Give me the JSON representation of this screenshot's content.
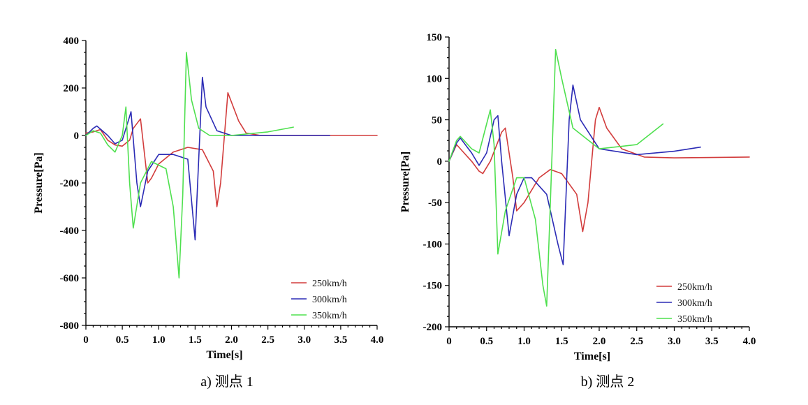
{
  "chart_data": [
    {
      "type": "line",
      "caption": "a)  测点 1",
      "xlabel": "Time[s]",
      "ylabel": "Pressure[Pa]",
      "xlim": [
        0,
        4.0
      ],
      "ylim": [
        -800,
        400
      ],
      "xticks": [
        "0",
        "0.5",
        "1.0",
        "1.5",
        "2.0",
        "2.5",
        "3.0",
        "3.5",
        "4.0"
      ],
      "yticks": [
        "400",
        "200",
        "0",
        "-200",
        "-400",
        "-600",
        "-800"
      ],
      "legend_position": "bottom-right",
      "series": [
        {
          "name": "250km/h",
          "color": "#d23c3c",
          "x": [
            0,
            0.1,
            0.2,
            0.3,
            0.4,
            0.5,
            0.6,
            0.65,
            0.75,
            0.85,
            0.9,
            1.0,
            1.2,
            1.4,
            1.6,
            1.75,
            1.8,
            1.85,
            1.95,
            2.1,
            2.2,
            2.4,
            3.0,
            4.0
          ],
          "y": [
            10,
            15,
            25,
            -20,
            -40,
            -45,
            -20,
            30,
            70,
            -200,
            -180,
            -120,
            -70,
            -50,
            -60,
            -150,
            -300,
            -200,
            180,
            60,
            10,
            0,
            0,
            0
          ]
        },
        {
          "name": "300km/h",
          "color": "#2b2bb5",
          "x": [
            0,
            0.1,
            0.15,
            0.3,
            0.4,
            0.5,
            0.6,
            0.62,
            0.7,
            0.75,
            0.85,
            1.0,
            1.2,
            1.4,
            1.5,
            1.52,
            1.6,
            1.65,
            1.8,
            2.0,
            2.5,
            3.0,
            3.35
          ],
          "y": [
            0,
            30,
            40,
            0,
            -35,
            -20,
            80,
            100,
            -200,
            -300,
            -150,
            -80,
            -80,
            -100,
            -440,
            -300,
            245,
            120,
            20,
            0,
            0,
            0,
            0
          ]
        },
        {
          "name": "350km/h",
          "color": "#4fe04f",
          "x": [
            0,
            0.1,
            0.2,
            0.3,
            0.4,
            0.5,
            0.55,
            0.6,
            0.65,
            0.75,
            0.9,
            1.1,
            1.2,
            1.28,
            1.33,
            1.38,
            1.45,
            1.55,
            1.7,
            2.0,
            2.5,
            2.85
          ],
          "y": [
            0,
            20,
            10,
            -40,
            -70,
            0,
            120,
            -200,
            -390,
            -200,
            -110,
            -140,
            -300,
            -600,
            -250,
            350,
            150,
            30,
            0,
            0,
            15,
            35
          ]
        }
      ]
    },
    {
      "type": "line",
      "caption": "b)  测点 2",
      "xlabel": "Time[s]",
      "ylabel": "Pressure[Pa]",
      "xlim": [
        0,
        4.0
      ],
      "ylim": [
        -200,
        150
      ],
      "xticks": [
        "0",
        "0.5",
        "1.0",
        "1.5",
        "2.0",
        "2.5",
        "3.0",
        "3.5",
        "4.0"
      ],
      "yticks": [
        "150",
        "100",
        "50",
        "0",
        "-50",
        "-100",
        "-150",
        "-200"
      ],
      "legend_position": "bottom-right",
      "series": [
        {
          "name": "250km/h",
          "color": "#d23c3c",
          "x": [
            0,
            0.1,
            0.2,
            0.3,
            0.4,
            0.45,
            0.55,
            0.7,
            0.75,
            0.85,
            0.9,
            1.0,
            1.2,
            1.35,
            1.5,
            1.7,
            1.78,
            1.85,
            1.95,
            2.0,
            2.1,
            2.3,
            2.6,
            3.0,
            4.0
          ],
          "y": [
            0,
            20,
            10,
            0,
            -12,
            -15,
            0,
            35,
            40,
            -20,
            -60,
            -50,
            -20,
            -10,
            -15,
            -40,
            -85,
            -50,
            50,
            65,
            40,
            15,
            5,
            4,
            5
          ]
        },
        {
          "name": "300km/h",
          "color": "#2b2bb5",
          "x": [
            0,
            0.1,
            0.15,
            0.3,
            0.4,
            0.5,
            0.6,
            0.65,
            0.7,
            0.8,
            0.9,
            1.0,
            1.1,
            1.3,
            1.45,
            1.52,
            1.6,
            1.65,
            1.75,
            2.0,
            2.5,
            3.0,
            3.35
          ],
          "y": [
            0,
            22,
            28,
            10,
            -5,
            10,
            50,
            55,
            0,
            -90,
            -40,
            -20,
            -20,
            -40,
            -100,
            -125,
            50,
            92,
            50,
            15,
            8,
            12,
            17
          ]
        },
        {
          "name": "350km/h",
          "color": "#4fe04f",
          "x": [
            0,
            0.1,
            0.15,
            0.3,
            0.4,
            0.5,
            0.55,
            0.6,
            0.65,
            0.75,
            0.9,
            1.0,
            1.15,
            1.25,
            1.3,
            1.35,
            1.42,
            1.5,
            1.65,
            2.0,
            2.5,
            2.85
          ],
          "y": [
            0,
            25,
            30,
            15,
            10,
            45,
            62,
            20,
            -112,
            -60,
            -20,
            -20,
            -70,
            -150,
            -175,
            -50,
            135,
            100,
            40,
            15,
            20,
            45
          ]
        }
      ]
    }
  ]
}
